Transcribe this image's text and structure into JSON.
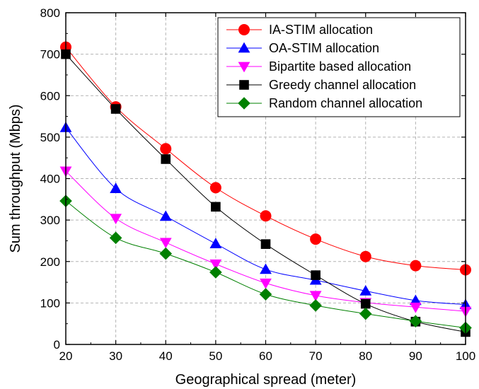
{
  "chart_data": {
    "type": "line",
    "xlabel": "Geographical spread (meter)",
    "ylabel": "Sum throughput (Mbps)",
    "xlim": [
      20,
      100
    ],
    "ylim": [
      0,
      800
    ],
    "x_ticks": [
      20,
      30,
      40,
      50,
      60,
      70,
      80,
      90,
      100
    ],
    "y_ticks": [
      0,
      100,
      200,
      300,
      400,
      500,
      600,
      700,
      800
    ],
    "grid": true,
    "legend_position": "top-right",
    "x": [
      20,
      30,
      40,
      50,
      60,
      70,
      80,
      90,
      100
    ],
    "series": [
      {
        "name": "IA-STIM allocation",
        "marker": "circle",
        "color": "#ff0000",
        "values": [
          717,
          573,
          472,
          378,
          310,
          254,
          212,
          190,
          180
        ]
      },
      {
        "name": "OA-STIM allocation",
        "marker": "triangle-up",
        "color": "#0000ff",
        "values": [
          523,
          376,
          309,
          243,
          181,
          155,
          129,
          106,
          96
        ]
      },
      {
        "name": "Bipartite based allocation",
        "marker": "triangle-down",
        "color": "#ff00ff",
        "values": [
          418,
          304,
          246,
          194,
          148,
          118,
          101,
          90,
          80
        ]
      },
      {
        "name": "Greedy channel allocation",
        "marker": "square",
        "color": "#000000",
        "values": [
          700,
          568,
          447,
          332,
          242,
          167,
          98,
          55,
          30
        ]
      },
      {
        "name": "Random channel allocation",
        "marker": "diamond",
        "color": "#008000",
        "values": [
          346,
          257,
          219,
          174,
          121,
          94,
          74,
          56,
          40
        ]
      }
    ]
  }
}
